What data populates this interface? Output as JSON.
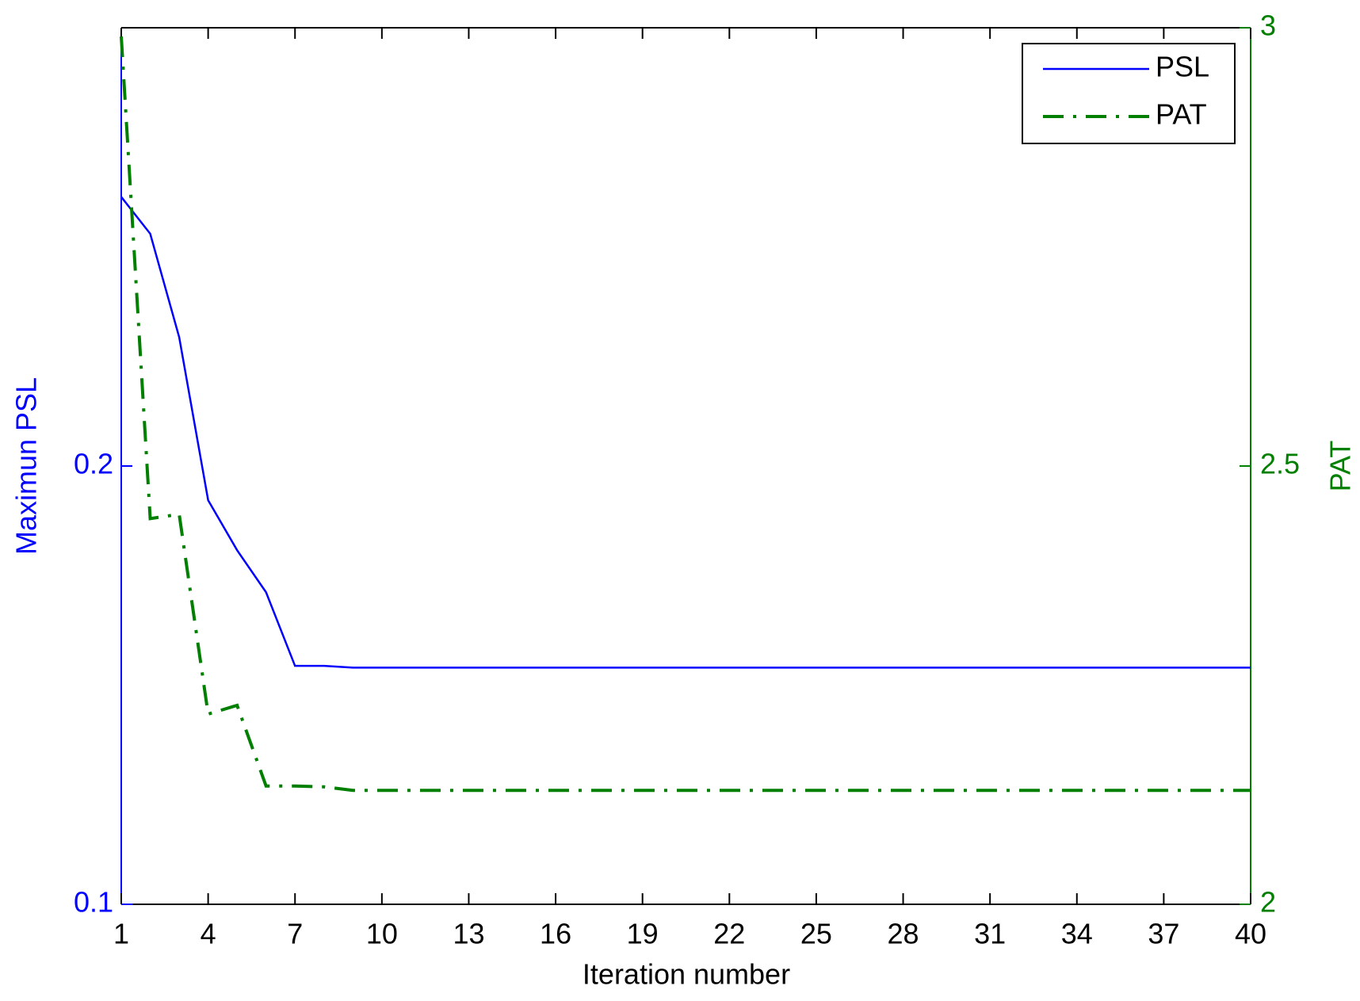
{
  "chart_data": {
    "type": "line",
    "xlabel": "Iteration number",
    "ylabel": "Maximun PSL",
    "y2label": "PAT",
    "x": [
      1,
      2,
      3,
      4,
      5,
      6,
      7,
      8,
      9,
      10,
      11,
      12,
      13,
      14,
      15,
      16,
      17,
      18,
      19,
      20,
      21,
      22,
      23,
      24,
      25,
      26,
      27,
      28,
      29,
      30,
      31,
      32,
      33,
      34,
      35,
      36,
      37,
      38,
      39,
      40
    ],
    "xlim": [
      1,
      40
    ],
    "xticks": [
      1,
      4,
      7,
      10,
      13,
      16,
      19,
      22,
      25,
      28,
      31,
      34,
      37,
      40
    ],
    "ylim": [
      0.1,
      0.3
    ],
    "yticks": [
      0.1,
      0.2
    ],
    "y2lim": [
      2,
      3
    ],
    "y2ticks": [
      2,
      2.5,
      3
    ],
    "legend": "upper right",
    "series": [
      {
        "name": "PSL",
        "color": "#0000ff",
        "style": "solid",
        "values": [
          0.2614,
          0.253,
          0.2294,
          0.1922,
          0.1808,
          0.1712,
          0.1544,
          0.1544,
          0.154,
          0.154,
          0.154,
          0.154,
          0.154,
          0.154,
          0.154,
          0.154,
          0.154,
          0.154,
          0.154,
          0.154,
          0.154,
          0.154,
          0.154,
          0.154,
          0.154,
          0.154,
          0.154,
          0.154,
          0.154,
          0.154,
          0.154,
          0.154,
          0.154,
          0.154,
          0.154,
          0.154,
          0.154,
          0.154,
          0.154,
          0.154
        ]
      },
      {
        "name": "PAT",
        "color": "#007f00",
        "style": "dashdot",
        "axis": "y2",
        "values": [
          2.99,
          2.44,
          2.445,
          2.217,
          2.227,
          2.135,
          2.135,
          2.134,
          2.13,
          2.13,
          2.13,
          2.13,
          2.13,
          2.13,
          2.13,
          2.13,
          2.13,
          2.13,
          2.13,
          2.13,
          2.13,
          2.13,
          2.13,
          2.13,
          2.13,
          2.13,
          2.13,
          2.13,
          2.13,
          2.13,
          2.13,
          2.13,
          2.13,
          2.13,
          2.13,
          2.13,
          2.13,
          2.13,
          2.13,
          2.13
        ]
      }
    ]
  }
}
